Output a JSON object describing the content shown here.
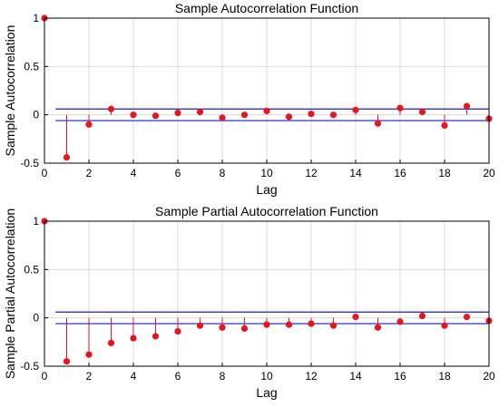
{
  "chart_data": [
    {
      "type": "stem",
      "title": "Sample Autocorrelation Function",
      "xlabel": "Lag",
      "ylabel": "Sample Autocorrelation",
      "xlim": [
        0,
        20
      ],
      "ylim": [
        -0.5,
        1
      ],
      "xticks": [
        "0",
        "2",
        "4",
        "6",
        "8",
        "10",
        "12",
        "14",
        "16",
        "18",
        "20"
      ],
      "yticks": [
        "-0.5",
        "0",
        "0.5",
        "1"
      ],
      "grid": true,
      "bounds": [
        0.06,
        -0.06
      ],
      "stem_color": "#e8141e",
      "bound_color": "#1a1acc",
      "x": [
        0,
        1,
        2,
        3,
        4,
        5,
        6,
        7,
        8,
        9,
        10,
        11,
        12,
        13,
        14,
        15,
        16,
        17,
        18,
        19,
        20
      ],
      "values": [
        1.0,
        -0.44,
        -0.1,
        0.06,
        0.0,
        -0.01,
        0.02,
        0.03,
        -0.03,
        0.0,
        0.04,
        -0.02,
        0.01,
        0.0,
        0.05,
        -0.09,
        0.07,
        0.03,
        -0.11,
        0.09,
        -0.04
      ]
    },
    {
      "type": "stem",
      "title": "Sample Partial Autocorrelation Function",
      "xlabel": "Lag",
      "ylabel": "Sample Partial Autocorrelation",
      "xlim": [
        0,
        20
      ],
      "ylim": [
        -0.5,
        1
      ],
      "xticks": [
        "0",
        "2",
        "4",
        "6",
        "8",
        "10",
        "12",
        "14",
        "16",
        "18",
        "20"
      ],
      "yticks": [
        "-0.5",
        "0",
        "0.5",
        "1"
      ],
      "grid": true,
      "bounds": [
        0.06,
        -0.06
      ],
      "stem_color": "#e8141e",
      "bound_color": "#1a1acc",
      "x": [
        0,
        1,
        2,
        3,
        4,
        5,
        6,
        7,
        8,
        9,
        10,
        11,
        12,
        13,
        14,
        15,
        16,
        17,
        18,
        19,
        20
      ],
      "values": [
        1.0,
        -0.45,
        -0.38,
        -0.26,
        -0.21,
        -0.19,
        -0.14,
        -0.08,
        -0.1,
        -0.11,
        -0.07,
        -0.07,
        -0.06,
        -0.08,
        0.01,
        -0.1,
        -0.04,
        0.02,
        -0.08,
        0.01,
        -0.03
      ]
    }
  ]
}
